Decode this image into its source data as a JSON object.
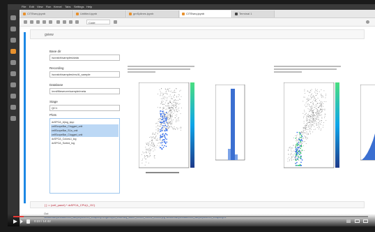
{
  "menu": [
    "File",
    "Edit",
    "View",
    "Run",
    "Kernel",
    "Tabs",
    "Settings",
    "Help"
  ],
  "tabs": [
    {
      "label": "CITEseq.ipynb",
      "active": false
    },
    {
      "label": "Untitled.ipynb",
      "active": false
    },
    {
      "label": "gmSplines.ipynb",
      "active": false
    },
    {
      "label": "CITEseq.ipynb",
      "active": true
    },
    {
      "label": "Terminal 1",
      "active": false
    }
  ],
  "toolbar": {
    "cell_type": "Code"
  },
  "code_cell": {
    "text": "gview"
  },
  "widgets": {
    "base_dir": {
      "label": "Base dir",
      "value": "/scratch/samples/data"
    },
    "recording": {
      "label": "Recording",
      "value": "/scratch/samples/rec/A_sample"
    },
    "database": {
      "label": "Database",
      "value": "/mnt/fileserver/sample/meta"
    },
    "stage": {
      "label": "Stage",
      "value": "QC1"
    },
    "plots": {
      "label": "Plots"
    }
  },
  "plot_options": [
    {
      "label": "dcSPCA_A|log_s|up",
      "selected": false
    },
    {
      "label": "cellScopeBar_Clogged_unit",
      "selected": true
    },
    {
      "label": "cellScopeBar_S1a_unit",
      "selected": true
    },
    {
      "label": "cellScopeBar_Clogged_unit",
      "selected": true
    },
    {
      "label": "dcSPCA_ColorsLi_log",
      "selected": false
    },
    {
      "label": "dcSPCA_Sorted_log",
      "selected": false
    }
  ],
  "bottom_cell": {
    "text": "[ ] := (cell_panel) * dcSPCA_CPU(L_OC)"
  },
  "output": {
    "text": "Out"
  },
  "links": {
    "text": "/scratch/samples/data/rec/A_sample/panel/run_1/output/QC1/figures/plot_celldensity_scatter_000001_000002_000003.png  /scratch/samples/data/rec/A_sample/panel/run_1/output/QC1"
  },
  "player": {
    "time": "0:23 / 14:42",
    "progress": 0.03
  },
  "colors": {
    "accent": "#1e88e5",
    "density_high": "#22c55e",
    "density_low": "#1e3a8a"
  }
}
